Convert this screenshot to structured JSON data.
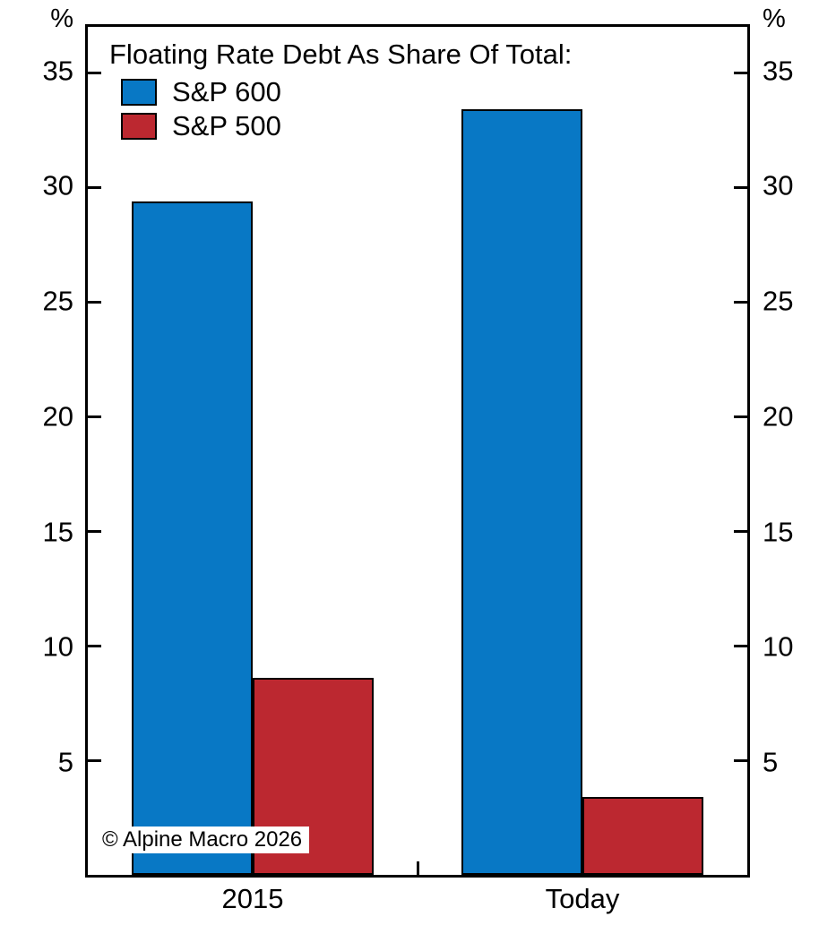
{
  "axes": {
    "unit_left": "%",
    "unit_right": "%"
  },
  "legend": {
    "title": "Floating Rate Debt As Share Of Total:",
    "items": [
      {
        "label": "S&P 600",
        "color": "#0878c5"
      },
      {
        "label": "S&P 500",
        "color": "#bc2830"
      }
    ]
  },
  "footer": {
    "copyright": "© Alpine Macro 2026"
  },
  "colors": {
    "blue": "#0878c5",
    "red": "#bc2830",
    "axis": "#000000"
  },
  "chart_data": {
    "type": "bar",
    "categories": [
      "2015",
      "Today"
    ],
    "series": [
      {
        "name": "S&P 600",
        "color": "#0878c5",
        "values": [
          29.4,
          33.4
        ]
      },
      {
        "name": "S&P 500",
        "color": "#bc2830",
        "values": [
          8.6,
          3.4
        ]
      }
    ],
    "title": "Floating Rate Debt As Share Of Total:",
    "ylabel": "%",
    "ylim": [
      0,
      37
    ],
    "y_ticks": [
      5,
      10,
      15,
      20,
      25,
      30,
      35
    ],
    "grid": false,
    "legend_position": "top-left",
    "axis_sides": [
      "left",
      "right"
    ]
  }
}
